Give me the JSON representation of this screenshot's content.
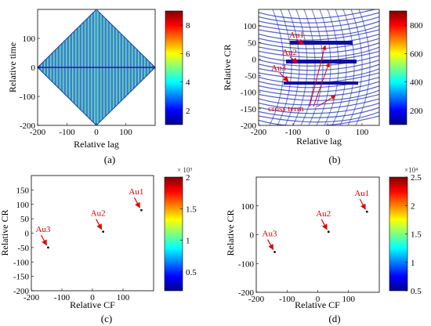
{
  "chart_data": [
    {
      "panel": "(a)",
      "type": "heatmap",
      "xlabel": "Relative lag",
      "ylabel": "Relative time",
      "xlim": [
        -200,
        200
      ],
      "ylim": [
        -200,
        200
      ],
      "xticks": [
        "-200",
        "-100",
        "0",
        "100"
      ],
      "yticks": [
        "100",
        "0",
        "-100",
        "-200"
      ],
      "colorbar": {
        "ticks": [
          "8",
          "6",
          "4",
          "2"
        ],
        "range": [
          1,
          9
        ]
      }
    },
    {
      "panel": "(b)",
      "type": "heatmap",
      "xlabel": "Relative lag",
      "ylabel": "Relative CR",
      "xlim": [
        -200,
        150
      ],
      "ylim": [
        -200,
        150
      ],
      "xticks": [
        "-200",
        "-100",
        "0",
        "100"
      ],
      "yticks": [
        "100",
        "50",
        "0",
        "-50",
        "-100",
        "-150",
        "-200"
      ],
      "colorbar": {
        "ticks": [
          "800",
          "600",
          "400",
          "200"
        ],
        "range": [
          100,
          900
        ]
      },
      "annotations": [
        "Au1",
        "Au2",
        "Au3",
        "cross term"
      ]
    },
    {
      "panel": "(c)",
      "type": "scatter",
      "xlabel": "Relative CF",
      "ylabel": "Relative CR",
      "xlim": [
        -200,
        200
      ],
      "ylim": [
        -200,
        200
      ],
      "xticks": [
        "-200",
        "-100",
        "0",
        "100"
      ],
      "yticks": [
        "150",
        "100",
        "50",
        "0",
        "-50",
        "-100",
        "-150",
        "-200"
      ],
      "points": [
        {
          "label": "Au1",
          "x": 160,
          "y": 80
        },
        {
          "label": "Au2",
          "x": 35,
          "y": 5
        },
        {
          "label": "Au3",
          "x": -145,
          "y": -50
        }
      ],
      "colorbar": {
        "ticks": [
          "2",
          "1.5",
          "1",
          "0.5"
        ],
        "exponent": "× 10⁵",
        "range": [
          0.2,
          2
        ]
      }
    },
    {
      "panel": "(d)",
      "type": "scatter",
      "xlabel": "Relative CF",
      "ylabel": "Relative CR",
      "xlim": [
        -200,
        200
      ],
      "ylim": [
        -200,
        200
      ],
      "xticks": [
        "-200",
        "-100",
        "0",
        "100"
      ],
      "yticks": [
        "100",
        "0",
        "-100",
        "-200"
      ],
      "points": [
        {
          "label": "Au1",
          "x": 160,
          "y": 80
        },
        {
          "label": "Au2",
          "x": 35,
          "y": 10
        },
        {
          "label": "Au3",
          "x": -140,
          "y": -60
        }
      ],
      "colorbar": {
        "ticks": [
          "2.5",
          "2",
          "1.5",
          "1",
          "0.5"
        ],
        "exponent": "×10⁴",
        "range": [
          0.5,
          2.5
        ]
      }
    }
  ]
}
